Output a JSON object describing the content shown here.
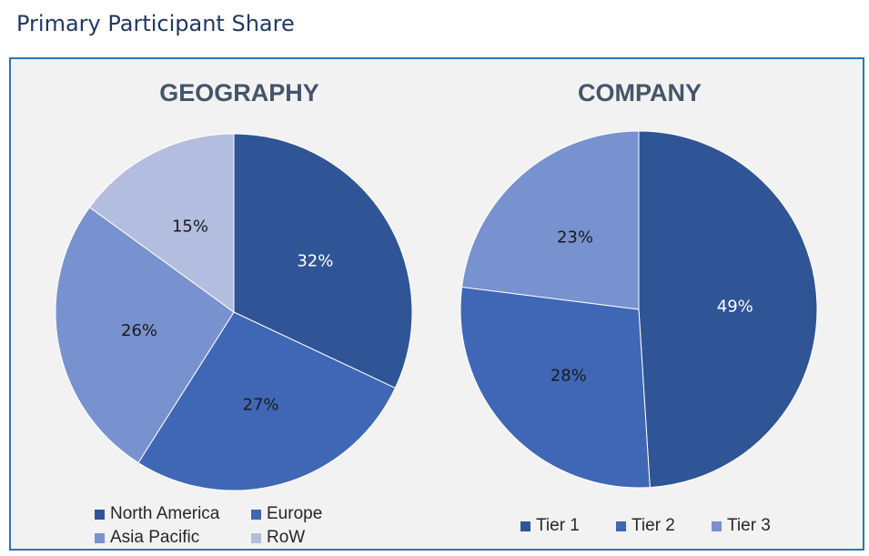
{
  "page": {
    "title": "Primary Participant Share"
  },
  "chart_data": [
    {
      "type": "pie",
      "title": "GEOGRAPHY",
      "categories": [
        "North America",
        "Europe",
        "Asia Pacific",
        "RoW"
      ],
      "values": [
        32,
        27,
        26,
        15
      ],
      "labels": [
        "32%",
        "27%",
        "26%",
        "15%"
      ],
      "colors": [
        "#2f5597",
        "#3f67b5",
        "#7891cf",
        "#b2bde0"
      ],
      "label_colors": [
        "#ffffff",
        "#1a1a1a",
        "#1a1a1a",
        "#1a1a1a"
      ],
      "legend": "bottom"
    },
    {
      "type": "pie",
      "title": "COMPANY",
      "categories": [
        "Tier 1",
        "Tier 2",
        "Tier 3"
      ],
      "values": [
        49,
        28,
        23
      ],
      "labels": [
        "49%",
        "28%",
        "23%"
      ],
      "colors": [
        "#2f5597",
        "#3f67b5",
        "#7891cf"
      ],
      "label_colors": [
        "#ffffff",
        "#1a1a1a",
        "#1a1a1a"
      ],
      "legend": "bottom"
    }
  ]
}
